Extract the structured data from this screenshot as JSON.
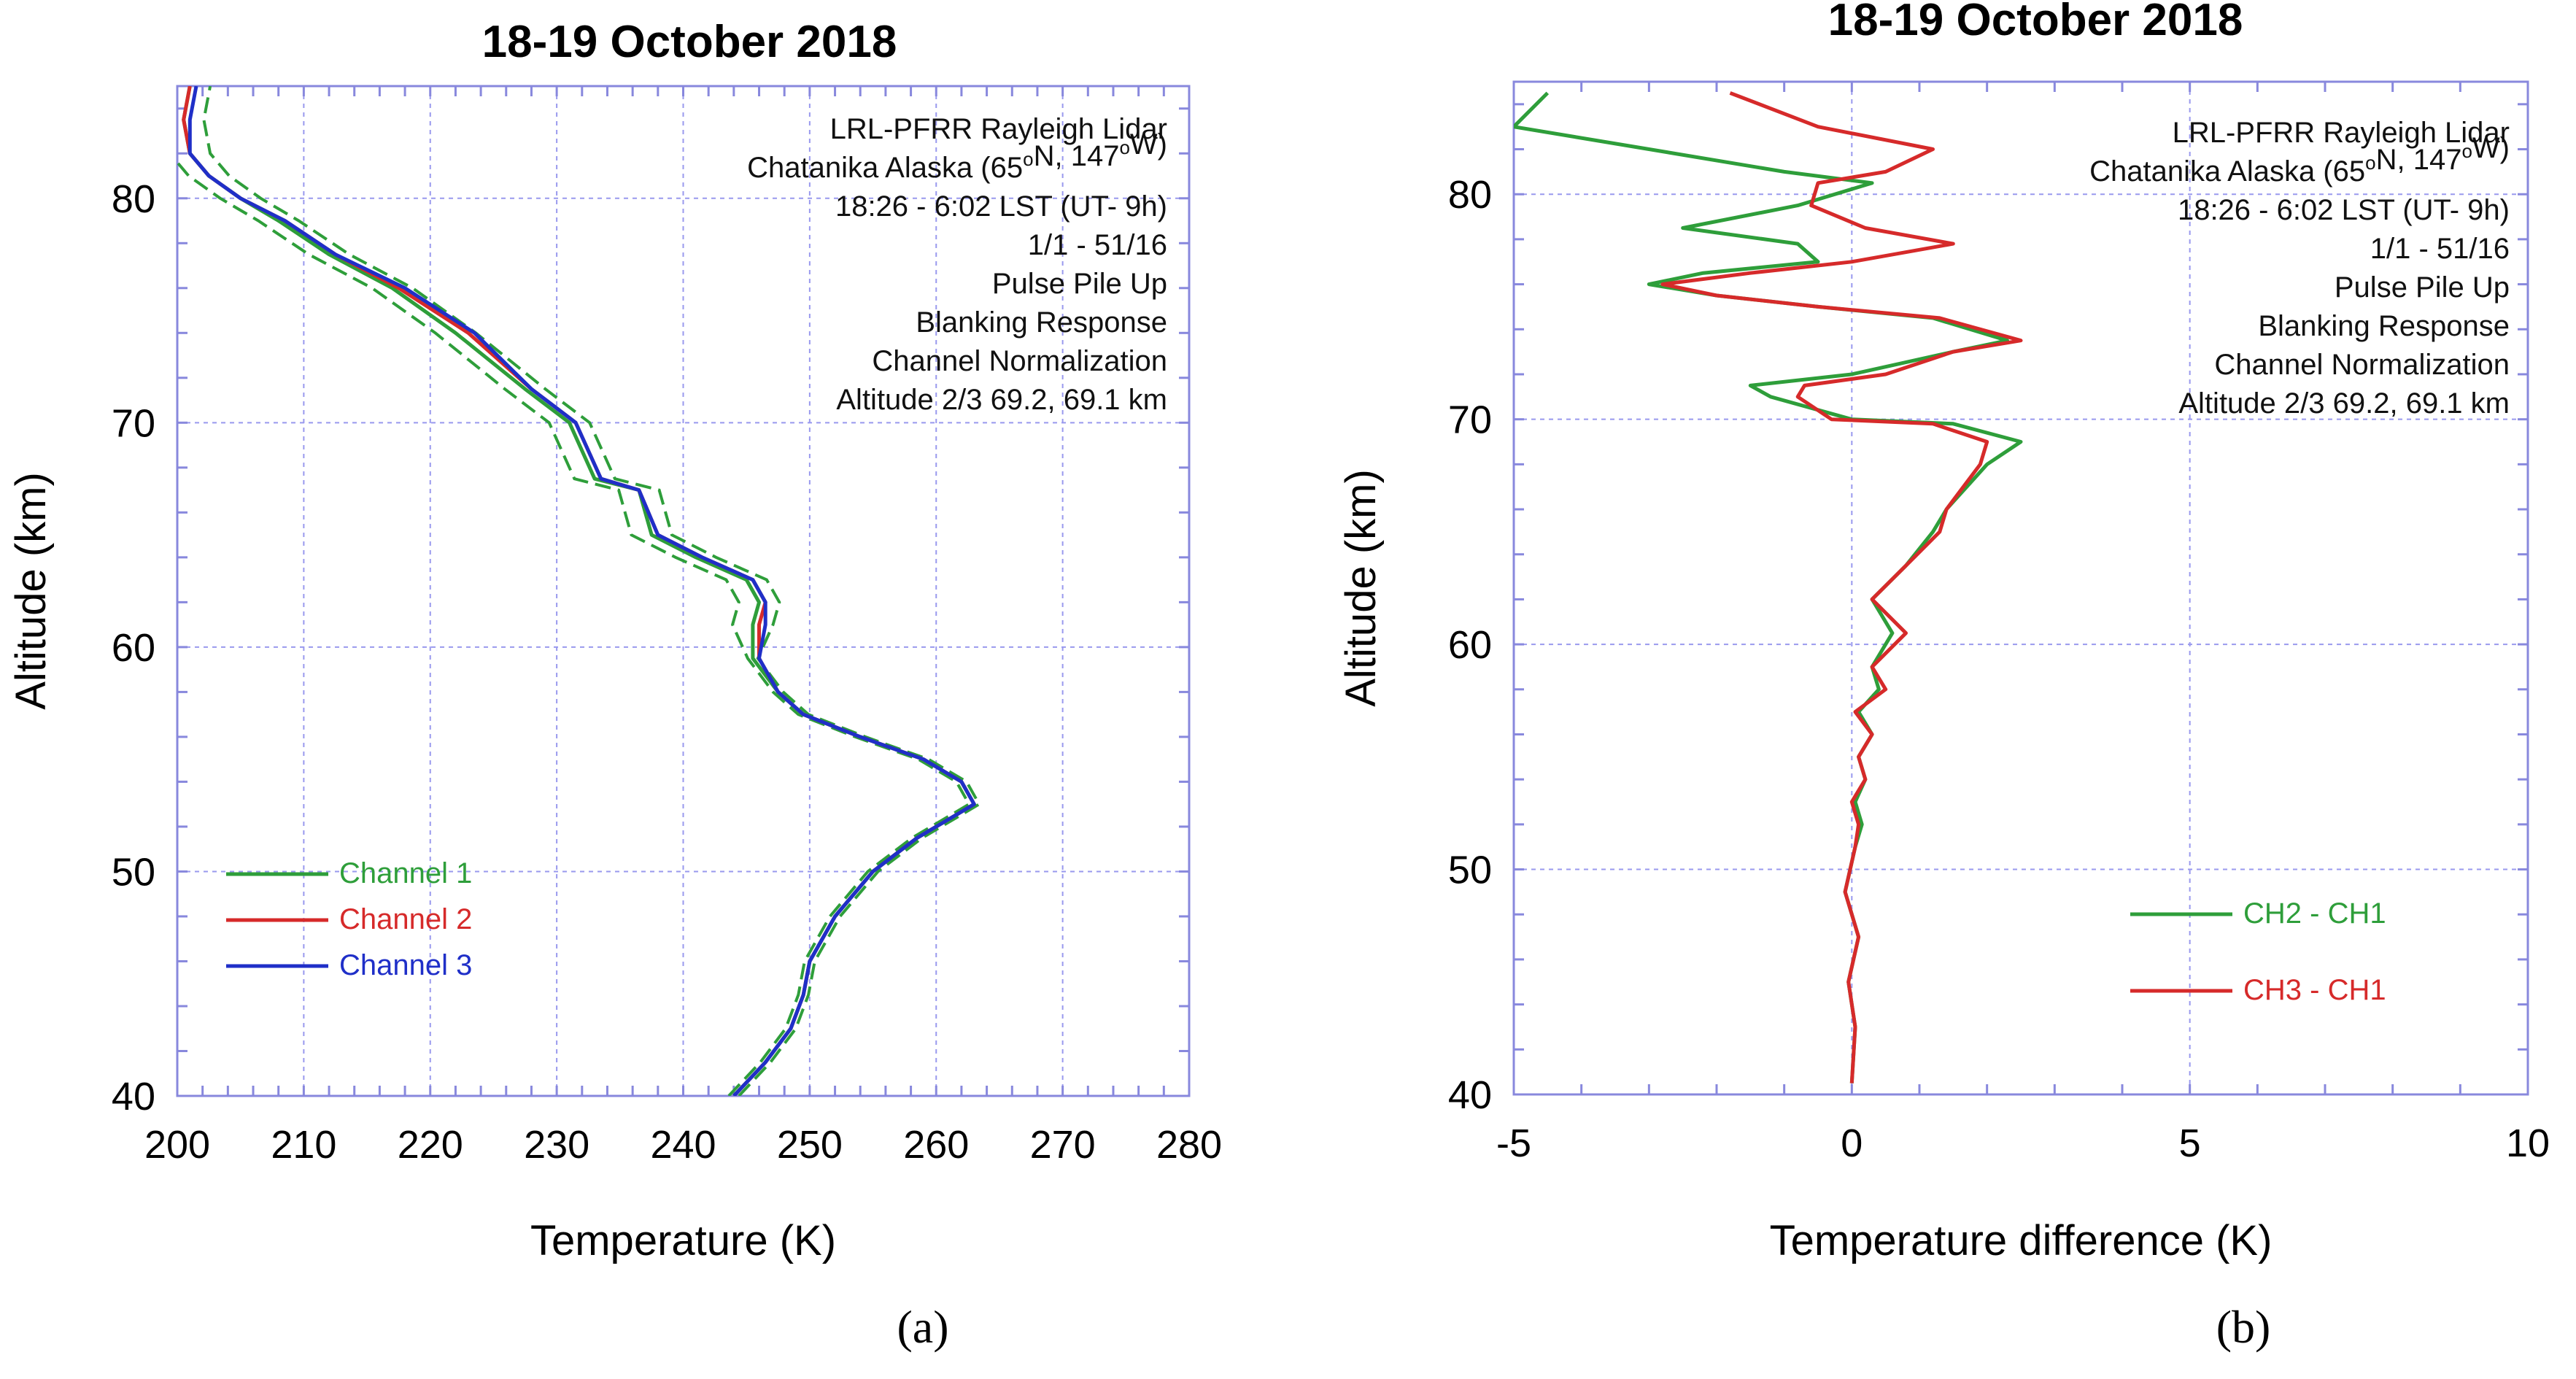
{
  "chart_data": [
    {
      "panel": "(a)",
      "type": "line",
      "title": "18-19 October 2018",
      "xlabel": "Temperature (K)",
      "ylabel": "Altitude (km)",
      "xlim": [
        200,
        280
      ],
      "ylim": [
        40,
        85
      ],
      "xticks": [
        200,
        210,
        220,
        230,
        240,
        250,
        260,
        270,
        280
      ],
      "yticks": [
        40,
        50,
        60,
        70,
        80
      ],
      "grid": true,
      "legend": "bottom-left",
      "annotations": [
        "LRL-PFRR Rayleigh Lidar",
        "Chatanika Alaska (65°N, 147°W)",
        "18:26 - 6:02 LST (UT- 9h)",
        "1/1 - 51/16",
        "Pulse Pile Up",
        "Blanking Response",
        "Channel Normalization",
        "Altitude 2/3 69.2, 69.1 km"
      ],
      "series": [
        {
          "name": "Channel 1",
          "color": "#2e9e3a",
          "dashed_uncertainty": true,
          "x": [
            244.0,
            246.5,
            248.5,
            249.5,
            250.0,
            252.0,
            255.0,
            258.5,
            261.5,
            263.0,
            262.0,
            259.0,
            254.0,
            249.5,
            247.5,
            245.5,
            245.5,
            246.0,
            245.0,
            241.0,
            237.5,
            236.5,
            233.0,
            231.0,
            227.5,
            222.0,
            217.0,
            212.0,
            208.0,
            205.0,
            202.5,
            201.0,
            200.5,
            201.0
          ],
          "y": [
            40.0,
            41.5,
            43.0,
            44.5,
            46.0,
            48.0,
            50.0,
            51.5,
            52.5,
            53.0,
            54.0,
            55.0,
            56.0,
            57.0,
            58.0,
            59.5,
            61.0,
            62.0,
            63.0,
            64.0,
            65.0,
            67.0,
            67.5,
            70.0,
            71.5,
            74.0,
            76.0,
            77.5,
            79.0,
            80.0,
            81.0,
            82.0,
            83.5,
            85.0
          ]
        },
        {
          "name": "Channel 2",
          "color": "#d62a2a",
          "x": [
            244.0,
            246.5,
            248.5,
            249.5,
            250.0,
            252.0,
            255.0,
            258.5,
            261.5,
            263.0,
            262.0,
            259.0,
            254.0,
            249.5,
            247.5,
            246.0,
            246.0,
            246.5,
            245.5,
            241.5,
            238.0,
            236.5,
            233.5,
            231.5,
            228.0,
            223.0,
            217.5,
            212.5,
            208.5,
            205.0,
            202.5,
            201.0,
            200.5,
            201.0
          ],
          "y": [
            40.0,
            41.5,
            43.0,
            44.5,
            46.0,
            48.0,
            50.0,
            51.5,
            52.5,
            53.0,
            54.0,
            55.0,
            56.0,
            57.0,
            58.0,
            59.5,
            61.0,
            62.0,
            63.0,
            64.0,
            65.0,
            67.0,
            67.5,
            70.0,
            71.5,
            74.0,
            76.0,
            77.5,
            79.0,
            80.0,
            81.0,
            82.0,
            83.5,
            85.0
          ]
        },
        {
          "name": "Channel 3",
          "color": "#1f2fc8",
          "x": [
            244.0,
            246.5,
            248.5,
            249.5,
            250.0,
            252.0,
            255.0,
            258.5,
            261.5,
            263.0,
            262.0,
            259.0,
            254.0,
            249.5,
            247.5,
            246.0,
            246.5,
            246.5,
            245.5,
            241.5,
            238.0,
            236.5,
            233.5,
            231.5,
            228.0,
            223.5,
            218.0,
            212.5,
            208.5,
            205.0,
            202.5,
            201.0,
            201.0,
            201.5
          ],
          "y": [
            40.0,
            41.5,
            43.0,
            44.5,
            46.0,
            48.0,
            50.0,
            51.5,
            52.5,
            53.0,
            54.0,
            55.0,
            56.0,
            57.0,
            58.0,
            59.5,
            61.0,
            62.0,
            63.0,
            64.0,
            65.0,
            67.0,
            67.5,
            70.0,
            71.5,
            74.0,
            76.0,
            77.5,
            79.0,
            80.0,
            81.0,
            82.0,
            83.5,
            85.0
          ]
        }
      ]
    },
    {
      "panel": "(b)",
      "type": "line",
      "title": "18-19 October 2018",
      "xlabel": "Temperature difference (K)",
      "ylabel": "Altitude (km)",
      "xlim": [
        -5,
        10
      ],
      "ylim": [
        40,
        85
      ],
      "xticks": [
        -5,
        0,
        5,
        10
      ],
      "yticks": [
        40,
        50,
        60,
        70,
        80
      ],
      "grid": true,
      "legend": "bottom-right",
      "annotations": [
        "LRL-PFRR Rayleigh Lidar",
        "Chatanika Alaska (65°N, 147°W)",
        "18:26 - 6:02 LST (UT- 9h)",
        "1/1 - 51/16",
        "Pulse Pile Up",
        "Blanking Response",
        "Channel Normalization",
        "Altitude 2/3 69.2, 69.1 km"
      ],
      "series": [
        {
          "name": "CH2 - CH1",
          "color": "#2e9e3a",
          "x": [
            0.0,
            0.05,
            -0.05,
            0.1,
            -0.1,
            0.05,
            0.15,
            0.05,
            0.2,
            0.1,
            0.3,
            0.1,
            0.4,
            0.3,
            0.6,
            0.3,
            0.8,
            1.2,
            1.4,
            2.0,
            2.5,
            1.5,
            0.0,
            -1.2,
            -1.5,
            0.0,
            1.5,
            2.3,
            1.2,
            -0.5,
            -2.0,
            -3.0,
            -2.2,
            -0.5,
            -0.8,
            -2.5,
            -0.8,
            0.3,
            -1.0,
            -3.0,
            -5.0,
            -4.5
          ],
          "y": [
            40.5,
            43.0,
            45.0,
            47.0,
            49.0,
            51.0,
            52.0,
            53.0,
            54.0,
            55.0,
            56.0,
            57.0,
            58.0,
            59.0,
            60.5,
            62.0,
            63.5,
            65.0,
            66.0,
            68.0,
            69.0,
            69.8,
            70.0,
            71.0,
            71.5,
            72.0,
            73.0,
            73.5,
            74.5,
            75.0,
            75.5,
            76.0,
            76.5,
            77.0,
            77.8,
            78.5,
            79.5,
            80.5,
            81.0,
            82.0,
            83.0,
            84.5
          ]
        },
        {
          "name": "CH3 - CH1",
          "color": "#d62a2a",
          "x": [
            0.0,
            0.05,
            -0.05,
            0.1,
            -0.1,
            0.05,
            0.1,
            0.0,
            0.2,
            0.1,
            0.3,
            0.05,
            0.5,
            0.3,
            0.8,
            0.3,
            0.8,
            1.3,
            1.4,
            1.9,
            2.0,
            1.2,
            -0.3,
            -0.8,
            -0.7,
            0.5,
            1.5,
            2.5,
            1.3,
            -0.5,
            -2.0,
            -2.8,
            -1.5,
            0.0,
            1.5,
            0.2,
            -0.6,
            -0.5,
            0.5,
            1.2,
            -0.5,
            -1.8
          ],
          "y": [
            40.5,
            43.0,
            45.0,
            47.0,
            49.0,
            51.0,
            52.0,
            53.0,
            54.0,
            55.0,
            56.0,
            57.0,
            58.0,
            59.0,
            60.5,
            62.0,
            63.5,
            65.0,
            66.0,
            68.0,
            69.0,
            69.8,
            70.0,
            71.0,
            71.5,
            72.0,
            73.0,
            73.5,
            74.5,
            75.0,
            75.5,
            76.0,
            76.5,
            77.0,
            77.8,
            78.5,
            79.5,
            80.5,
            81.0,
            82.0,
            83.0,
            84.5
          ]
        }
      ]
    }
  ]
}
